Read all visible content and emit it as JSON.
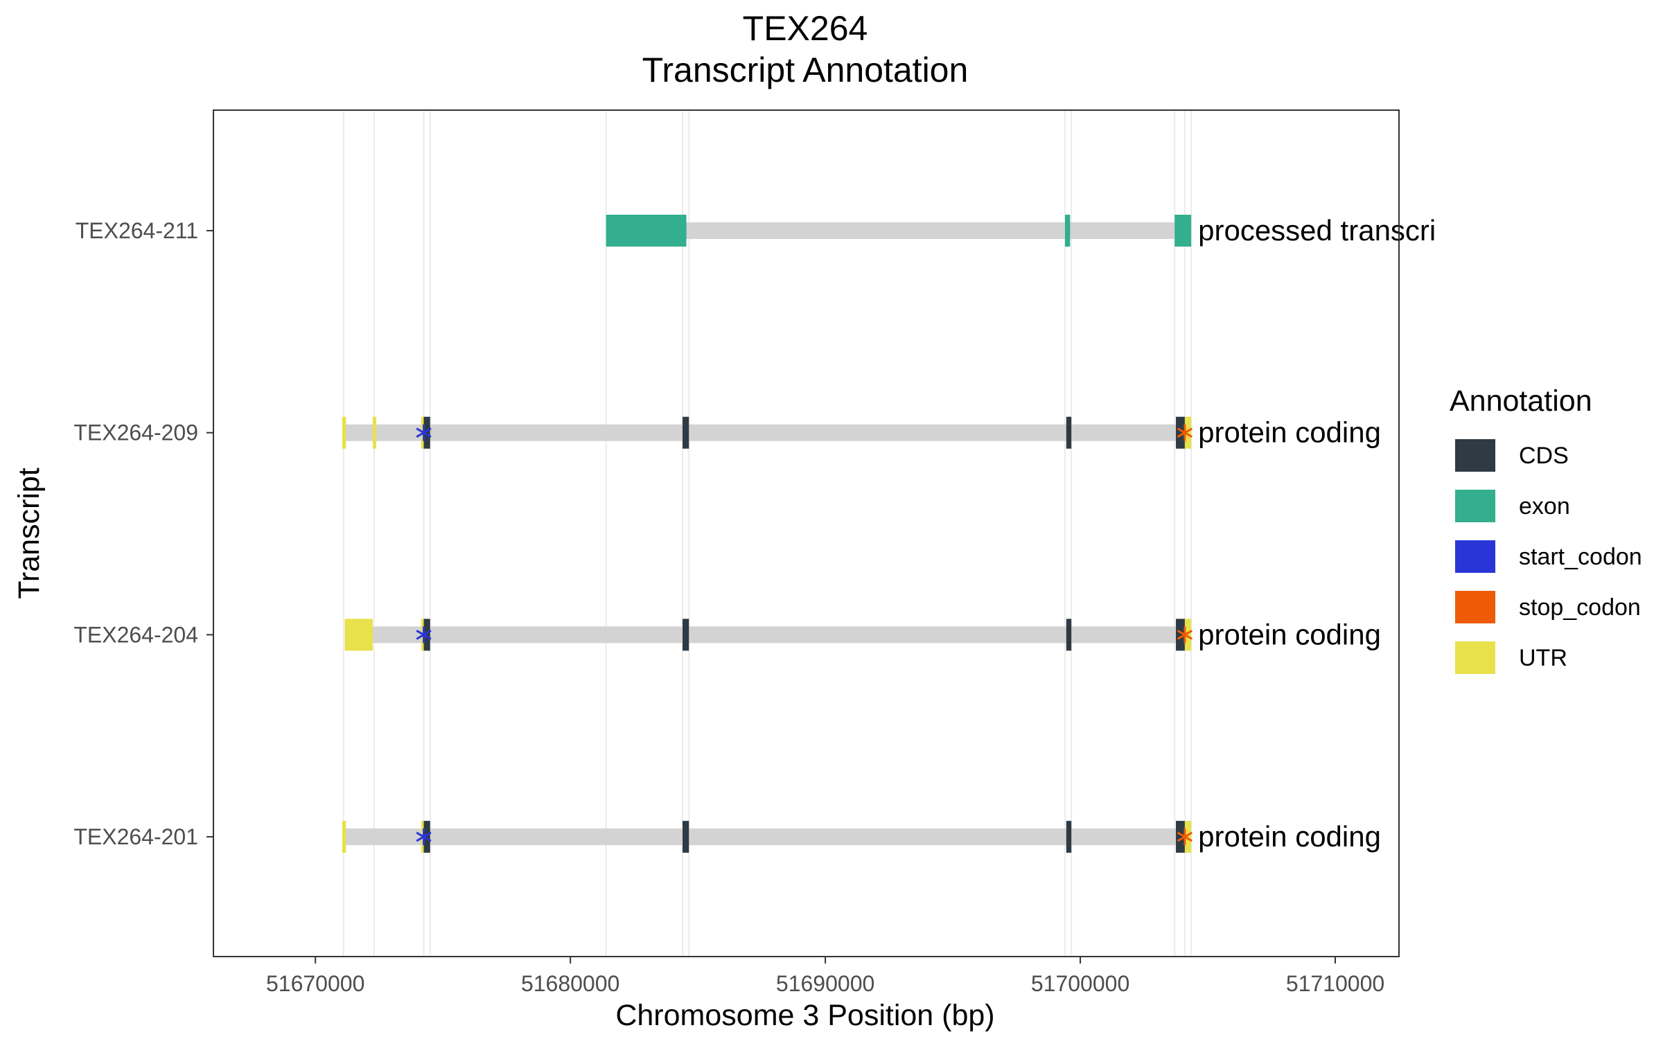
{
  "chart_data": {
    "type": "gene_track",
    "title": "TEX264",
    "subtitle": "Transcript Annotation",
    "xlabel": "Chromosome 3 Position (bp)",
    "ylabel": "Transcript",
    "xlim": [
      51666000,
      51712500
    ],
    "x_ticks": [
      51670000,
      51680000,
      51690000,
      51700000,
      51710000
    ],
    "x_tick_labels": [
      "51670000",
      "51680000",
      "51690000",
      "51700000",
      "51710000"
    ],
    "grid": true,
    "legend": {
      "title": "Annotation",
      "position": "right",
      "items": [
        {
          "label": "CDS",
          "color": "#2E3A44"
        },
        {
          "label": "exon",
          "color": "#33AE8E"
        },
        {
          "label": "start_codon",
          "color": "#2A35D8"
        },
        {
          "label": "stop_codon",
          "color": "#EE5A08"
        },
        {
          "label": "UTR",
          "color": "#E8E14B"
        }
      ]
    },
    "colors": {
      "intron": "#D3D3D3",
      "CDS": "#2E3A44",
      "exon": "#33AE8E",
      "start_codon": "#2A35D8",
      "stop_codon": "#EE5A08",
      "UTR": "#E8E14B",
      "grid": "#EBEBEB"
    },
    "transcripts": [
      {
        "name": "TEX264-211",
        "biotype_label": "processed transcri",
        "start": 51681400,
        "end": 51704350,
        "features": [
          {
            "type": "exon",
            "start": 51681400,
            "end": 51684550
          },
          {
            "type": "exon",
            "start": 51699400,
            "end": 51699600
          },
          {
            "type": "exon",
            "start": 51703700,
            "end": 51704350
          }
        ],
        "start_codon": null,
        "stop_codon": null
      },
      {
        "name": "TEX264-209",
        "biotype_label": "protein coding",
        "start": 51671100,
        "end": 51704350,
        "features": [
          {
            "type": "UTR",
            "start": 51671050,
            "end": 51671200
          },
          {
            "type": "UTR",
            "start": 51672250,
            "end": 51672350
          },
          {
            "type": "UTR",
            "start": 51674150,
            "end": 51674250
          },
          {
            "type": "CDS",
            "start": 51674250,
            "end": 51674500
          },
          {
            "type": "CDS",
            "start": 51684400,
            "end": 51684650
          },
          {
            "type": "CDS",
            "start": 51699450,
            "end": 51699650
          },
          {
            "type": "CDS",
            "start": 51703750,
            "end": 51704100
          },
          {
            "type": "UTR",
            "start": 51704100,
            "end": 51704350
          }
        ],
        "start_codon": 51674250,
        "stop_codon": 51704100
      },
      {
        "name": "TEX264-204",
        "biotype_label": "protein coding",
        "start": 51671150,
        "end": 51704350,
        "features": [
          {
            "type": "UTR",
            "start": 51671150,
            "end": 51672250
          },
          {
            "type": "UTR",
            "start": 51674150,
            "end": 51674250
          },
          {
            "type": "CDS",
            "start": 51674250,
            "end": 51674500
          },
          {
            "type": "CDS",
            "start": 51684400,
            "end": 51684650
          },
          {
            "type": "CDS",
            "start": 51699450,
            "end": 51699650
          },
          {
            "type": "CDS",
            "start": 51703750,
            "end": 51704100
          },
          {
            "type": "UTR",
            "start": 51704100,
            "end": 51704350
          }
        ],
        "start_codon": 51674250,
        "stop_codon": 51704100
      },
      {
        "name": "TEX264-201",
        "biotype_label": "protein coding",
        "start": 51671100,
        "end": 51704350,
        "features": [
          {
            "type": "UTR",
            "start": 51671050,
            "end": 51671200
          },
          {
            "type": "UTR",
            "start": 51674150,
            "end": 51674250
          },
          {
            "type": "CDS",
            "start": 51674250,
            "end": 51674500
          },
          {
            "type": "CDS",
            "start": 51684400,
            "end": 51684650
          },
          {
            "type": "CDS",
            "start": 51699450,
            "end": 51699650
          },
          {
            "type": "CDS",
            "start": 51703750,
            "end": 51704100
          },
          {
            "type": "UTR",
            "start": 51704100,
            "end": 51704350
          }
        ],
        "start_codon": 51674250,
        "stop_codon": 51704100
      }
    ],
    "feature_boundaries": [
      51671100,
      51672300,
      51674250,
      51674500,
      51681400,
      51684400,
      51684650,
      51699400,
      51699650,
      51703700,
      51704100,
      51704350
    ]
  }
}
